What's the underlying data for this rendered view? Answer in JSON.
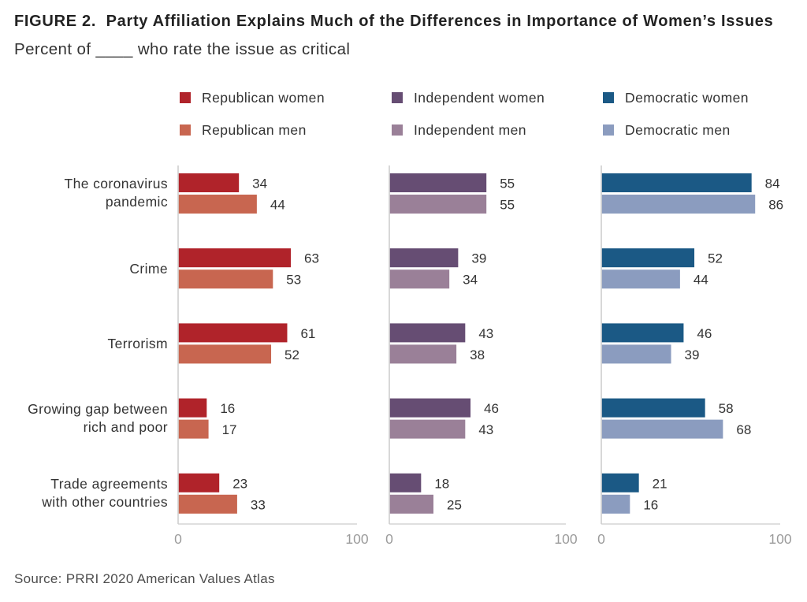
{
  "chart_data": {
    "type": "bar",
    "orientation": "horizontal",
    "title": "FIGURE 2.  Party Affiliation Explains Much of the Differences in Importance of Women’s Issues",
    "subtitle": "Percent of ____ who rate the issue as critical",
    "source": "Source: PRRI 2020 American Values Atlas",
    "categories": [
      "The coronavirus\npandemic",
      "Crime",
      "Terrorism",
      "Growing gap between\nrich and poor",
      "Trade agreements\nwith other countries"
    ],
    "xlim": [
      0,
      100
    ],
    "xticks": [
      0,
      100
    ],
    "grid": false,
    "legend_position": "top",
    "panels": [
      {
        "series": [
          {
            "name": "Republican women",
            "color": "#b0232a",
            "values": [
              34,
              63,
              61,
              16,
              23
            ]
          },
          {
            "name": "Republican men",
            "color": "#c86650",
            "values": [
              44,
              53,
              52,
              17,
              33
            ]
          }
        ]
      },
      {
        "series": [
          {
            "name": "Independent women",
            "color": "#664d73",
            "values": [
              55,
              39,
              43,
              46,
              18
            ]
          },
          {
            "name": "Independent men",
            "color": "#9a8098",
            "values": [
              55,
              34,
              38,
              43,
              25
            ]
          }
        ]
      },
      {
        "series": [
          {
            "name": "Democratic women",
            "color": "#1b5985",
            "values": [
              84,
              52,
              46,
              58,
              21
            ]
          },
          {
            "name": "Democratic men",
            "color": "#8b9cbf",
            "values": [
              86,
              44,
              39,
              68,
              16
            ]
          }
        ]
      }
    ]
  }
}
